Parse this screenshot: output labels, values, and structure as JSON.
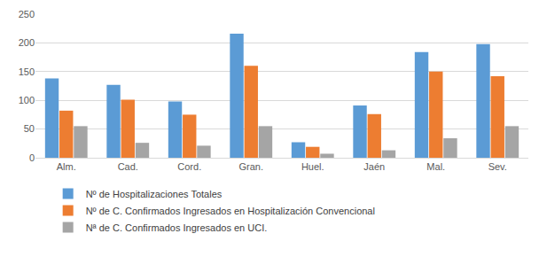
{
  "chart_data": {
    "type": "bar",
    "categories": [
      "Alm.",
      "Cad.",
      "Cord.",
      "Gran.",
      "Huel.",
      "Jaén",
      "Mal.",
      "Sev."
    ],
    "series": [
      {
        "name": "Nº de Hospitalizaciones Totales",
        "color": "#5b9bd5",
        "values": [
          138,
          127,
          98,
          216,
          27,
          91,
          184,
          198
        ]
      },
      {
        "name": "Nº de C. Confirmados Ingresados en Hospitalización Convencional",
        "color": "#ed7d31",
        "values": [
          82,
          101,
          75,
          160,
          19,
          76,
          150,
          142
        ]
      },
      {
        "name": "Nª de C. Confirmados Ingresados en UCI.",
        "color": "#a5a5a5",
        "values": [
          55,
          26,
          21,
          55,
          7,
          13,
          34,
          55
        ]
      }
    ],
    "ylim": [
      0,
      250
    ],
    "yticks": [
      0,
      50,
      100,
      150,
      200,
      250
    ],
    "grid": true,
    "legend": "bottom"
  }
}
